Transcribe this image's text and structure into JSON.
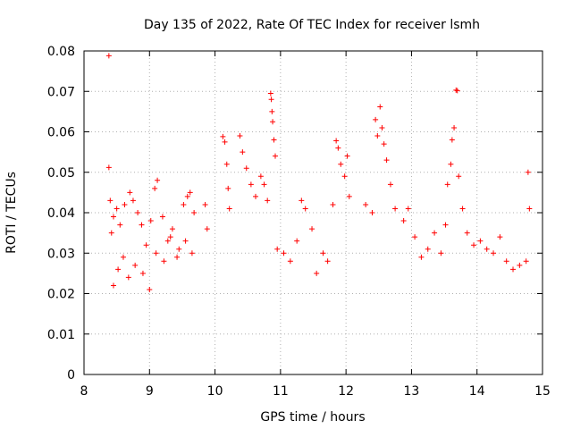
{
  "chart_data": {
    "type": "scatter",
    "title": "Day 135 of 2022, Rate Of TEC Index for receiver lsmh",
    "xlabel": "GPS time / hours",
    "ylabel": "ROTI / TECUs",
    "xlim": [
      8,
      15
    ],
    "ylim": [
      0,
      0.08
    ],
    "xticks": [
      "8",
      "9",
      "10",
      "11",
      "12",
      "13",
      "14",
      "15"
    ],
    "yticks": [
      "0",
      "0.01",
      "0.02",
      "0.03",
      "0.04",
      "0.05",
      "0.06",
      "0.07",
      "0.08"
    ],
    "grid": true,
    "marker": "+",
    "series": [
      {
        "color": "#ff0000",
        "points": [
          [
            8.38,
            0.0788
          ],
          [
            8.38,
            0.0512
          ],
          [
            8.4,
            0.043
          ],
          [
            8.42,
            0.035
          ],
          [
            8.45,
            0.039
          ],
          [
            8.5,
            0.041
          ],
          [
            8.55,
            0.037
          ],
          [
            8.62,
            0.042
          ],
          [
            8.7,
            0.045
          ],
          [
            8.75,
            0.043
          ],
          [
            8.82,
            0.04
          ],
          [
            8.88,
            0.037
          ],
          [
            8.95,
            0.032
          ],
          [
            9.02,
            0.038
          ],
          [
            9.08,
            0.046
          ],
          [
            9.12,
            0.048
          ],
          [
            9.2,
            0.039
          ],
          [
            9.28,
            0.033
          ],
          [
            9.35,
            0.036
          ],
          [
            9.45,
            0.031
          ],
          [
            9.52,
            0.042
          ],
          [
            9.58,
            0.044
          ],
          [
            9.62,
            0.045
          ],
          [
            9.68,
            0.04
          ],
          [
            8.45,
            0.022
          ],
          [
            8.52,
            0.026
          ],
          [
            8.6,
            0.029
          ],
          [
            8.68,
            0.024
          ],
          [
            8.78,
            0.027
          ],
          [
            8.9,
            0.025
          ],
          [
            9.0,
            0.021
          ],
          [
            9.1,
            0.03
          ],
          [
            9.22,
            0.028
          ],
          [
            9.32,
            0.034
          ],
          [
            9.42,
            0.029
          ],
          [
            9.55,
            0.033
          ],
          [
            9.65,
            0.03
          ],
          [
            9.85,
            0.042
          ],
          [
            9.88,
            0.036
          ],
          [
            10.12,
            0.0588
          ],
          [
            10.15,
            0.0575
          ],
          [
            10.18,
            0.052
          ],
          [
            10.2,
            0.046
          ],
          [
            10.22,
            0.041
          ],
          [
            10.38,
            0.059
          ],
          [
            10.42,
            0.055
          ],
          [
            10.48,
            0.051
          ],
          [
            10.55,
            0.047
          ],
          [
            10.62,
            0.044
          ],
          [
            10.7,
            0.049
          ],
          [
            10.75,
            0.047
          ],
          [
            10.8,
            0.043
          ],
          [
            10.85,
            0.0695
          ],
          [
            10.86,
            0.068
          ],
          [
            10.87,
            0.065
          ],
          [
            10.88,
            0.0625
          ],
          [
            10.9,
            0.058
          ],
          [
            10.92,
            0.054
          ],
          [
            10.95,
            0.031
          ],
          [
            11.05,
            0.03
          ],
          [
            11.15,
            0.028
          ],
          [
            11.25,
            0.033
          ],
          [
            11.32,
            0.043
          ],
          [
            11.38,
            0.041
          ],
          [
            11.48,
            0.036
          ],
          [
            11.55,
            0.025
          ],
          [
            11.65,
            0.03
          ],
          [
            11.72,
            0.028
          ],
          [
            11.8,
            0.042
          ],
          [
            11.85,
            0.0578
          ],
          [
            11.88,
            0.056
          ],
          [
            11.92,
            0.052
          ],
          [
            11.98,
            0.049
          ],
          [
            12.02,
            0.054
          ],
          [
            12.05,
            0.044
          ],
          [
            12.3,
            0.042
          ],
          [
            12.4,
            0.04
          ],
          [
            12.45,
            0.063
          ],
          [
            12.48,
            0.059
          ],
          [
            12.52,
            0.0662
          ],
          [
            12.55,
            0.061
          ],
          [
            12.58,
            0.057
          ],
          [
            12.62,
            0.053
          ],
          [
            12.68,
            0.047
          ],
          [
            12.75,
            0.041
          ],
          [
            12.88,
            0.038
          ],
          [
            12.95,
            0.041
          ],
          [
            13.05,
            0.034
          ],
          [
            13.15,
            0.029
          ],
          [
            13.25,
            0.031
          ],
          [
            13.35,
            0.035
          ],
          [
            13.45,
            0.03
          ],
          [
            13.52,
            0.037
          ],
          [
            13.55,
            0.047
          ],
          [
            13.6,
            0.052
          ],
          [
            13.62,
            0.058
          ],
          [
            13.65,
            0.061
          ],
          [
            13.68,
            0.0703
          ],
          [
            13.7,
            0.0702
          ],
          [
            13.72,
            0.049
          ],
          [
            13.78,
            0.041
          ],
          [
            13.85,
            0.035
          ],
          [
            13.95,
            0.032
          ],
          [
            14.05,
            0.033
          ],
          [
            14.15,
            0.031
          ],
          [
            14.25,
            0.03
          ],
          [
            14.35,
            0.034
          ],
          [
            14.45,
            0.028
          ],
          [
            14.55,
            0.026
          ],
          [
            14.65,
            0.027
          ],
          [
            14.78,
            0.05
          ],
          [
            14.8,
            0.041
          ],
          [
            14.75,
            0.028
          ]
        ]
      }
    ]
  }
}
